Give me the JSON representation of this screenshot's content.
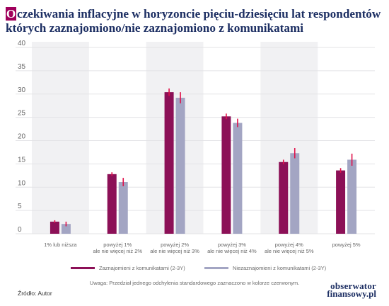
{
  "title": {
    "first_letter": "O",
    "rest": "czekiwania inflacyjne w horyzoncie pięciu-dziesięciu lat respondentów których zaznajomiono/nie zaznajomiono z komunikatami"
  },
  "colors": {
    "series1": "#8c1057",
    "series2": "#a3a5c3",
    "error": "#e0124b",
    "band": "#f1f1f3",
    "grid": "#e3e3e6",
    "tick_text": "#666666"
  },
  "chart_data": {
    "type": "bar",
    "ylim": [
      0,
      40
    ],
    "yticks": [
      0,
      5,
      10,
      15,
      20,
      25,
      30,
      35,
      40
    ],
    "grid": true,
    "legend_position": "bottom",
    "categories": [
      [
        "1% lub niższa"
      ],
      [
        "powyżej 1%",
        "ale nie więcej niż 2%"
      ],
      [
        "powyżej 2%",
        "ale nie więcej niż 3%"
      ],
      [
        "powyżej 3%",
        "ale nie więcej niż 4%"
      ],
      [
        "powyżej 4%",
        "ale nie więcej niż 5%"
      ],
      [
        "powyżej 5%"
      ]
    ],
    "series": [
      {
        "name": "Zaznajomieni z komunikatami (2-3Y)",
        "values": [
          2.6,
          12.8,
          30.4,
          25.2,
          15.4,
          13.6
        ],
        "errors": [
          0.3,
          0.4,
          0.8,
          0.6,
          0.5,
          0.5
        ]
      },
      {
        "name": "Niezaznajomieni z komunikatami (2-3Y)",
        "values": [
          2.1,
          11.1,
          29.2,
          23.8,
          17.3,
          15.9
        ],
        "errors": [
          0.5,
          0.9,
          1.2,
          0.9,
          1.1,
          1.3
        ]
      }
    ]
  },
  "note": "Uwaga: Przedział jednego odchylenia standardowego zaznaczono w kolorze czerwonym.",
  "source": "Źródło: Autor",
  "logo": {
    "line1": "obserwator",
    "line2": "finansowy.pl"
  }
}
